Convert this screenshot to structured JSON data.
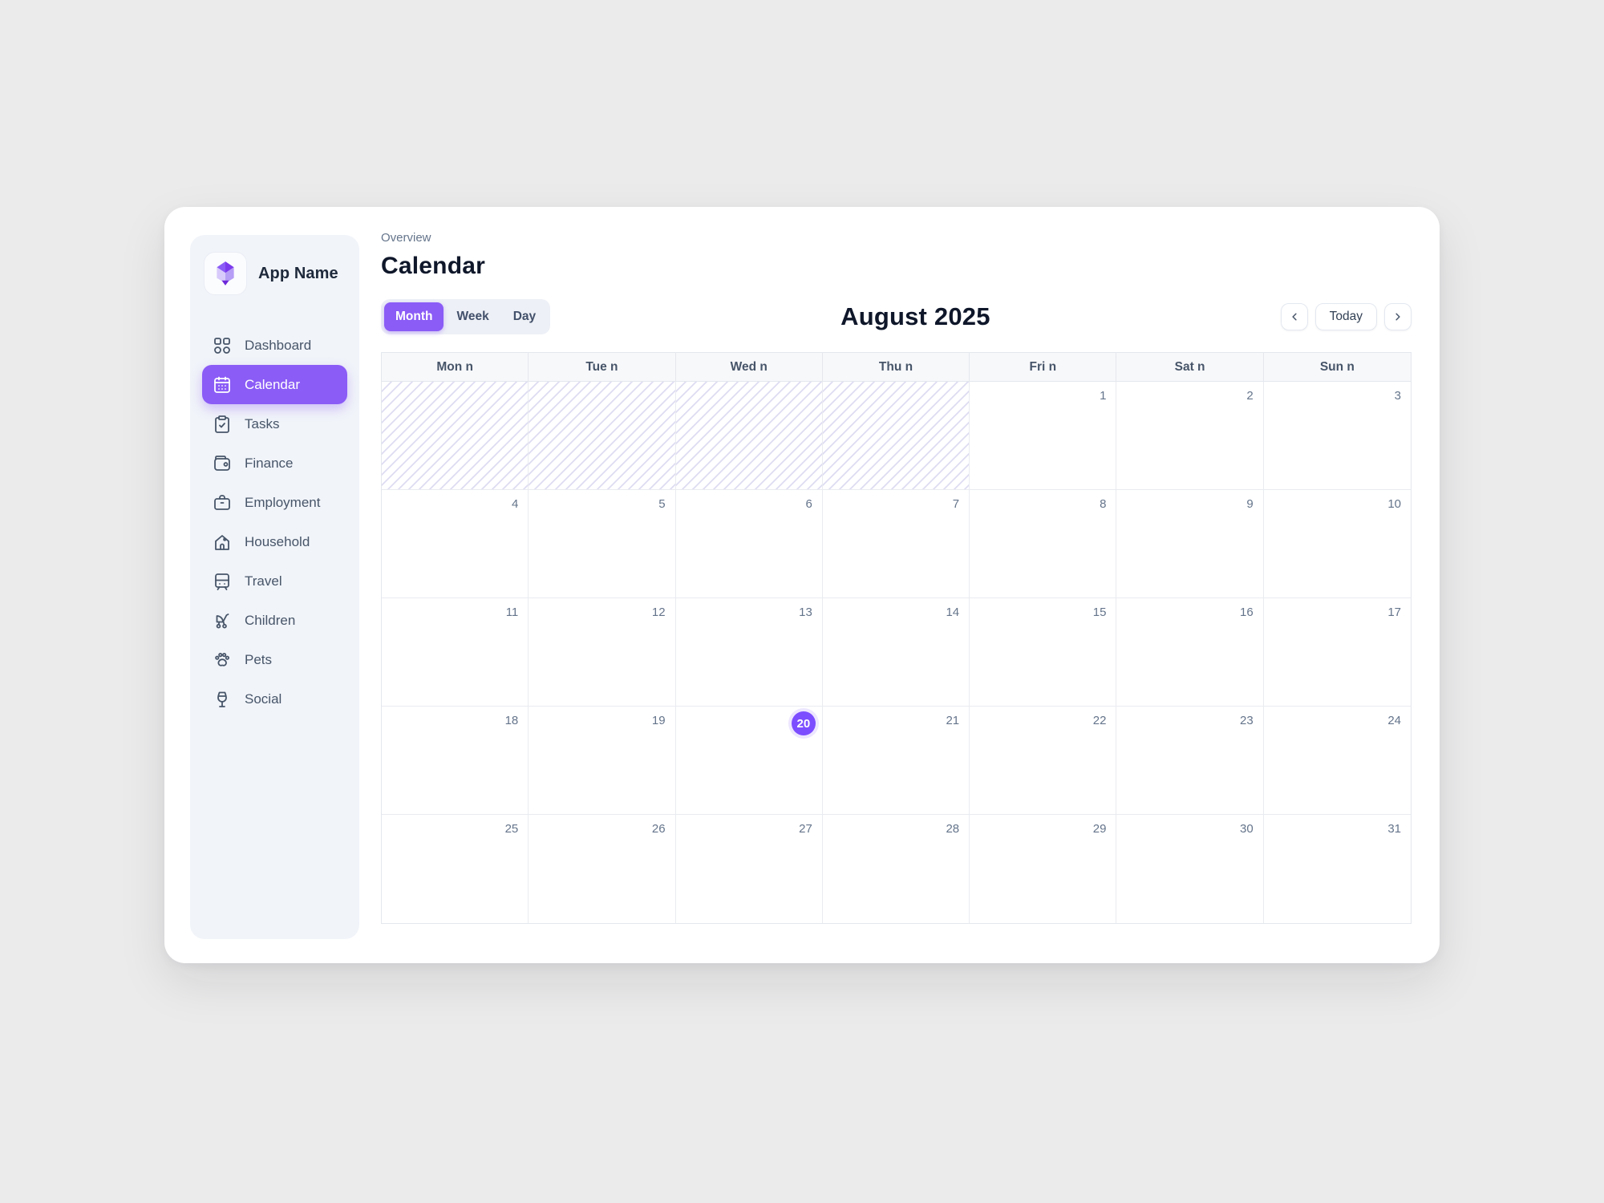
{
  "app": {
    "name": "App Name",
    "logo_icon": "gem-logo-icon"
  },
  "sidebar": {
    "items": [
      {
        "label": "Dashboard",
        "icon": "dashboard-icon",
        "active": false
      },
      {
        "label": "Calendar",
        "icon": "calendar-icon",
        "active": true
      },
      {
        "label": "Tasks",
        "icon": "tasks-icon",
        "active": false
      },
      {
        "label": "Finance",
        "icon": "finance-icon",
        "active": false
      },
      {
        "label": "Employment",
        "icon": "employment-icon",
        "active": false
      },
      {
        "label": "Household",
        "icon": "household-icon",
        "active": false
      },
      {
        "label": "Travel",
        "icon": "travel-icon",
        "active": false
      },
      {
        "label": "Children",
        "icon": "children-icon",
        "active": false
      },
      {
        "label": "Pets",
        "icon": "pets-icon",
        "active": false
      },
      {
        "label": "Social",
        "icon": "social-icon",
        "active": false
      }
    ]
  },
  "breadcrumb": "Overview",
  "page_title": "Calendar",
  "toolbar": {
    "views": [
      {
        "label": "Month",
        "active": true
      },
      {
        "label": "Week",
        "active": false
      },
      {
        "label": "Day",
        "active": false
      }
    ],
    "month_title": "August 2025",
    "today_label": "Today",
    "prev_icon": "chevron-left-icon",
    "next_icon": "chevron-right-icon"
  },
  "calendar": {
    "day_headers": [
      "Mon n",
      "Tue n",
      "Wed n",
      "Thu n",
      "Fri n",
      "Sat n",
      "Sun n"
    ],
    "weeks": [
      [
        {
          "day": null,
          "hatched": true
        },
        {
          "day": null,
          "hatched": true
        },
        {
          "day": null,
          "hatched": true
        },
        {
          "day": null,
          "hatched": true
        },
        {
          "day": 1
        },
        {
          "day": 2
        },
        {
          "day": 3
        }
      ],
      [
        {
          "day": 4
        },
        {
          "day": 5
        },
        {
          "day": 6
        },
        {
          "day": 7
        },
        {
          "day": 8
        },
        {
          "day": 9
        },
        {
          "day": 10
        }
      ],
      [
        {
          "day": 11
        },
        {
          "day": 12
        },
        {
          "day": 13
        },
        {
          "day": 14
        },
        {
          "day": 15
        },
        {
          "day": 16
        },
        {
          "day": 17
        }
      ],
      [
        {
          "day": 18
        },
        {
          "day": 19
        },
        {
          "day": 20,
          "today": true
        },
        {
          "day": 21
        },
        {
          "day": 22
        },
        {
          "day": 23
        },
        {
          "day": 24
        }
      ],
      [
        {
          "day": 25
        },
        {
          "day": 26
        },
        {
          "day": 27
        },
        {
          "day": 28
        },
        {
          "day": 29
        },
        {
          "day": 30
        },
        {
          "day": 31
        }
      ]
    ]
  },
  "colors": {
    "accent": "#8b5cf6",
    "today_circle": "#7c4dff",
    "hatch_line": "#dedcf2",
    "sidebar_bg": "#f1f4f9",
    "page_bg": "#ebebeb"
  }
}
